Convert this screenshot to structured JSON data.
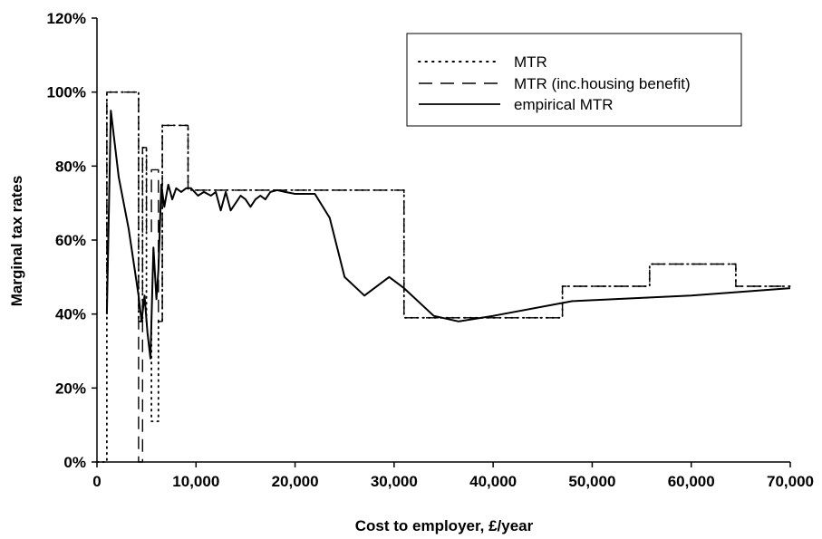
{
  "chart_data": {
    "type": "line",
    "title": "",
    "xlabel": "Cost to employer, £/year",
    "ylabel": "Marginal tax rates",
    "xlim": [
      0,
      70000
    ],
    "ylim": [
      0,
      120
    ],
    "x_ticks": [
      0,
      10000,
      20000,
      30000,
      40000,
      50000,
      60000,
      70000
    ],
    "x_tick_labels": [
      "0",
      "10,000",
      "20,000",
      "30,000",
      "40,000",
      "50,000",
      "60,000",
      "70,000"
    ],
    "y_ticks": [
      0,
      20,
      40,
      60,
      80,
      100,
      120
    ],
    "y_tick_labels": [
      "0%",
      "20%",
      "40%",
      "60%",
      "80%",
      "100%",
      "120%"
    ],
    "grid": false,
    "legend_position": "top-right",
    "series": [
      {
        "name": "MTR",
        "style": "dotted",
        "color": "#000000",
        "x": [
          0,
          1000,
          1000,
          4200,
          4200,
          4600,
          4600,
          5000,
          5000,
          5500,
          5500,
          6200,
          6200,
          6600,
          6600,
          9200,
          9200,
          31000,
          31000,
          47000,
          47000,
          55800,
          55800,
          64500,
          64500,
          70000
        ],
        "y": [
          0,
          0,
          100,
          100,
          38,
          38,
          85,
          85,
          38,
          38,
          11,
          11,
          38,
          38,
          91,
          91,
          73.5,
          73.5,
          39,
          39,
          47.5,
          47.5,
          53.5,
          53.5,
          47.5,
          47.5
        ]
      },
      {
        "name": "MTR (inc.housing benefit)",
        "style": "dashed",
        "color": "#000000",
        "x": [
          1000,
          1000,
          4200,
          4200,
          4600,
          4600,
          5000,
          5000,
          5500,
          5500,
          6200,
          6200,
          6600,
          6600,
          9200,
          9200,
          31000,
          31000,
          47000,
          47000,
          55800,
          55800,
          64500,
          64500,
          70000
        ],
        "y": [
          40,
          100,
          100,
          0,
          0,
          85,
          85,
          62,
          62,
          79,
          79,
          38,
          38,
          91,
          91,
          73.5,
          73.5,
          39,
          39,
          47.5,
          47.5,
          53.5,
          53.5,
          47.5,
          47.5
        ]
      },
      {
        "name": "empirical MTR",
        "style": "solid",
        "color": "#000000",
        "x": [
          1000,
          1400,
          2200,
          3200,
          4200,
          4500,
          4800,
          5100,
          5400,
          5700,
          6000,
          6200,
          6500,
          6800,
          7200,
          7600,
          8000,
          8500,
          9000,
          9500,
          10200,
          10800,
          11500,
          12000,
          12500,
          13000,
          13500,
          14000,
          14500,
          15000,
          15500,
          16000,
          16500,
          17000,
          17500,
          18200,
          19000,
          20000,
          21000,
          22000,
          23500,
          25000,
          27000,
          29500,
          31000,
          34000,
          36500,
          40000,
          48000,
          60000,
          70000
        ],
        "y": [
          40,
          95,
          77,
          63,
          45,
          38,
          45,
          35,
          28,
          58,
          44,
          52,
          75,
          69,
          75,
          71,
          74,
          73,
          74,
          74,
          72,
          73,
          72,
          73,
          68,
          73,
          68,
          70,
          72,
          71,
          69,
          71,
          72,
          71,
          73,
          73.5,
          73,
          72.5,
          72.5,
          72.5,
          66,
          50,
          45,
          50,
          47,
          39.5,
          38,
          39.5,
          43.5,
          45,
          47
        ]
      }
    ]
  }
}
